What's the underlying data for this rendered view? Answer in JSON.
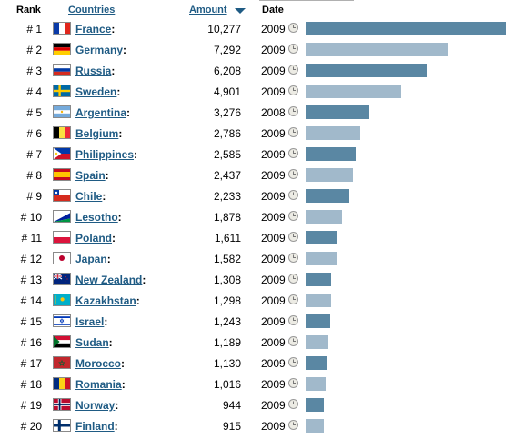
{
  "header": {
    "rank_label": "Rank",
    "countries_label": "Countries",
    "amount_label": "Amount",
    "date_label": "Date"
  },
  "colors": {
    "link": "#1f5b84",
    "bar_dark": "#5a87a3",
    "bar_light": "#a1b9cb"
  },
  "max_amount": 10277,
  "rows": [
    {
      "rank": "# 1",
      "country": "France",
      "amount": "10,277",
      "value": 10277,
      "year": "2009",
      "flag": "france"
    },
    {
      "rank": "# 2",
      "country": "Germany",
      "amount": "7,292",
      "value": 7292,
      "year": "2009",
      "flag": "germany"
    },
    {
      "rank": "# 3",
      "country": "Russia",
      "amount": "6,208",
      "value": 6208,
      "year": "2009",
      "flag": "russia"
    },
    {
      "rank": "# 4",
      "country": "Sweden",
      "amount": "4,901",
      "value": 4901,
      "year": "2009",
      "flag": "sweden"
    },
    {
      "rank": "# 5",
      "country": "Argentina",
      "amount": "3,276",
      "value": 3276,
      "year": "2008",
      "flag": "argentina"
    },
    {
      "rank": "# 6",
      "country": "Belgium",
      "amount": "2,786",
      "value": 2786,
      "year": "2009",
      "flag": "belgium"
    },
    {
      "rank": "# 7",
      "country": "Philippines",
      "amount": "2,585",
      "value": 2585,
      "year": "2009",
      "flag": "philippines"
    },
    {
      "rank": "# 8",
      "country": "Spain",
      "amount": "2,437",
      "value": 2437,
      "year": "2009",
      "flag": "spain"
    },
    {
      "rank": "# 9",
      "country": "Chile",
      "amount": "2,233",
      "value": 2233,
      "year": "2009",
      "flag": "chile"
    },
    {
      "rank": "# 10",
      "country": "Lesotho",
      "amount": "1,878",
      "value": 1878,
      "year": "2009",
      "flag": "lesotho"
    },
    {
      "rank": "# 11",
      "country": "Poland",
      "amount": "1,611",
      "value": 1611,
      "year": "2009",
      "flag": "poland"
    },
    {
      "rank": "# 12",
      "country": "Japan",
      "amount": "1,582",
      "value": 1582,
      "year": "2009",
      "flag": "japan"
    },
    {
      "rank": "# 13",
      "country": "New Zealand",
      "amount": "1,308",
      "value": 1308,
      "year": "2009",
      "flag": "new-zealand"
    },
    {
      "rank": "# 14",
      "country": "Kazakhstan",
      "amount": "1,298",
      "value": 1298,
      "year": "2009",
      "flag": "kazakhstan"
    },
    {
      "rank": "# 15",
      "country": "Israel",
      "amount": "1,243",
      "value": 1243,
      "year": "2009",
      "flag": "israel"
    },
    {
      "rank": "# 16",
      "country": "Sudan",
      "amount": "1,189",
      "value": 1189,
      "year": "2009",
      "flag": "sudan"
    },
    {
      "rank": "# 17",
      "country": "Morocco",
      "amount": "1,130",
      "value": 1130,
      "year": "2009",
      "flag": "morocco"
    },
    {
      "rank": "# 18",
      "country": "Romania",
      "amount": "1,016",
      "value": 1016,
      "year": "2009",
      "flag": "romania"
    },
    {
      "rank": "# 19",
      "country": "Norway",
      "amount": "944",
      "value": 944,
      "year": "2009",
      "flag": "norway"
    },
    {
      "rank": "# 20",
      "country": "Finland",
      "amount": "915",
      "value": 915,
      "year": "2009",
      "flag": "finland"
    }
  ]
}
